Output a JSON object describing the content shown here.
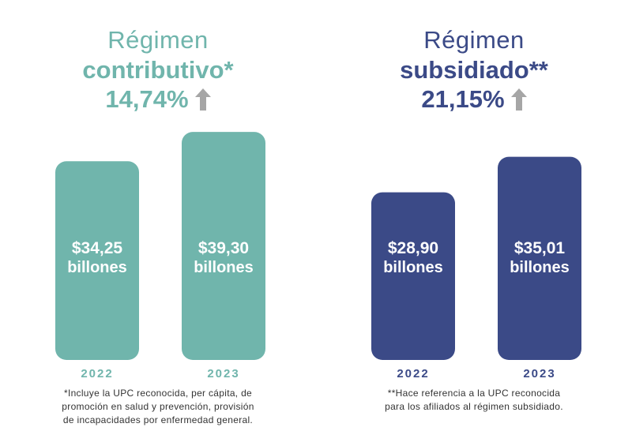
{
  "chart_data": [
    {
      "type": "bar",
      "title_line1": "Régimen",
      "title_line2": "contributivo*",
      "change_label": "14,74%",
      "color": "#70B5AC",
      "title_color_light": "#70B5AC",
      "title_color_bold": "#70B5AC",
      "categories": [
        "2022",
        "2023"
      ],
      "values": [
        34.25,
        39.3
      ],
      "value_labels": [
        "$34,25",
        "$39,30"
      ],
      "unit_label": "billones",
      "footnote": [
        "*Incluye la UPC reconocida, per cápita, de",
        "promoción en salud y prevención, provisión",
        "de incapacidades por enfermedad general."
      ]
    },
    {
      "type": "bar",
      "title_line1": "Régimen",
      "title_line2": "subsidiado**",
      "change_label": "21,15%",
      "color": "#3B4A87",
      "title_color_light": "#3B4A87",
      "title_color_bold": "#3B4A87",
      "categories": [
        "2022",
        "2023"
      ],
      "values": [
        28.9,
        35.01
      ],
      "value_labels": [
        "$28,90",
        "$35,01"
      ],
      "unit_label": "billones",
      "footnote": [
        "**Hace referencia a la UPC reconocida",
        "para los afiliados al régimen subsidiado."
      ]
    }
  ],
  "arrow_icon": "arrow-up-icon",
  "arrow_color": "#A6A6A6"
}
